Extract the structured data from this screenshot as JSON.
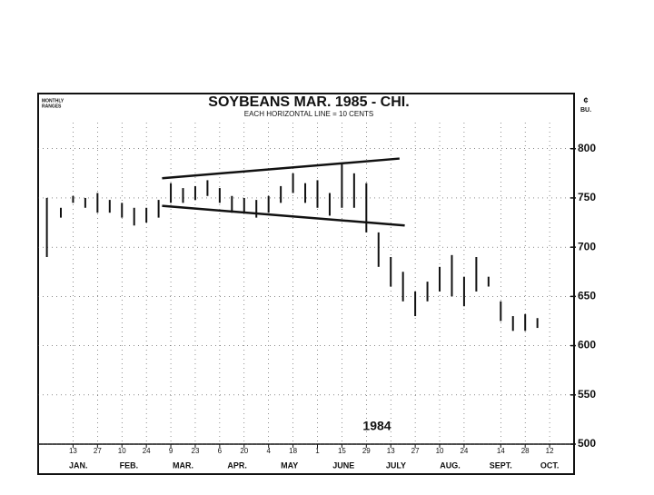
{
  "chart_data": {
    "type": "range-bar",
    "title": "SOYBEANS  MAR. 1985 - CHI.",
    "subtitle": "EACH HORIZONTAL LINE = 10 CENTS",
    "unit_label": [
      "¢",
      "BU."
    ],
    "left_label": [
      "MONTHLY",
      "RANGES"
    ],
    "annotation": "1984",
    "color": "#111111",
    "grid": true,
    "xlim": [
      -7,
      300
    ],
    "ylim": [
      500,
      856
    ],
    "yticks": [
      500,
      550,
      600,
      650,
      700,
      750,
      800
    ],
    "xticks": [
      {
        "value": 13,
        "label": "13"
      },
      {
        "value": 27,
        "label": "27"
      },
      {
        "value": 41,
        "label": "10"
      },
      {
        "value": 55,
        "label": "24"
      },
      {
        "value": 69,
        "label": "9"
      },
      {
        "value": 83,
        "label": "23"
      },
      {
        "value": 97,
        "label": "6"
      },
      {
        "value": 111,
        "label": "20"
      },
      {
        "value": 125,
        "label": "4"
      },
      {
        "value": 139,
        "label": "18"
      },
      {
        "value": 153,
        "label": "1"
      },
      {
        "value": 167,
        "label": "15"
      },
      {
        "value": 181,
        "label": "29"
      },
      {
        "value": 195,
        "label": "13"
      },
      {
        "value": 209,
        "label": "27"
      },
      {
        "value": 223,
        "label": "10"
      },
      {
        "value": 237,
        "label": "24"
      },
      {
        "value": 258,
        "label": "14"
      },
      {
        "value": 272,
        "label": "28"
      },
      {
        "value": 286,
        "label": "12"
      }
    ],
    "month_labels": [
      {
        "value": 16,
        "label": "JAN."
      },
      {
        "value": 45,
        "label": "FEB."
      },
      {
        "value": 76,
        "label": "MAR."
      },
      {
        "value": 107,
        "label": "APR."
      },
      {
        "value": 137,
        "label": "MAY"
      },
      {
        "value": 168,
        "label": "JUNE"
      },
      {
        "value": 198,
        "label": "JULY"
      },
      {
        "value": 229,
        "label": "AUG."
      },
      {
        "value": 258,
        "label": "SEPT."
      },
      {
        "value": 286,
        "label": "OCT."
      }
    ],
    "monthly_range": {
      "x": -2,
      "high": 750,
      "low": 690
    },
    "x": [
      6,
      13,
      20,
      27,
      34,
      41,
      48,
      55,
      62,
      69,
      76,
      83,
      90,
      97,
      104,
      111,
      118,
      125,
      132,
      139,
      146,
      153,
      160,
      167,
      174,
      181,
      188,
      195,
      202,
      209,
      216,
      223,
      230,
      237,
      244,
      251,
      258,
      265,
      272,
      279
    ],
    "high": [
      740,
      752,
      750,
      755,
      748,
      745,
      740,
      740,
      748,
      765,
      760,
      762,
      768,
      760,
      752,
      750,
      748,
      752,
      762,
      775,
      765,
      768,
      755,
      785,
      775,
      765,
      715,
      690,
      675,
      655,
      665,
      680,
      692,
      670,
      690,
      670,
      645,
      630,
      632,
      628
    ],
    "low": [
      730,
      745,
      740,
      735,
      735,
      730,
      722,
      725,
      730,
      745,
      745,
      748,
      752,
      745,
      735,
      735,
      730,
      735,
      745,
      755,
      745,
      740,
      732,
      740,
      740,
      715,
      680,
      660,
      645,
      630,
      645,
      655,
      650,
      640,
      655,
      660,
      625,
      615,
      615,
      618
    ],
    "trendlines": [
      {
        "x": [
          64,
          200
        ],
        "y": [
          770,
          790
        ]
      },
      {
        "x": [
          64,
          203
        ],
        "y": [
          742,
          722
        ]
      }
    ]
  }
}
